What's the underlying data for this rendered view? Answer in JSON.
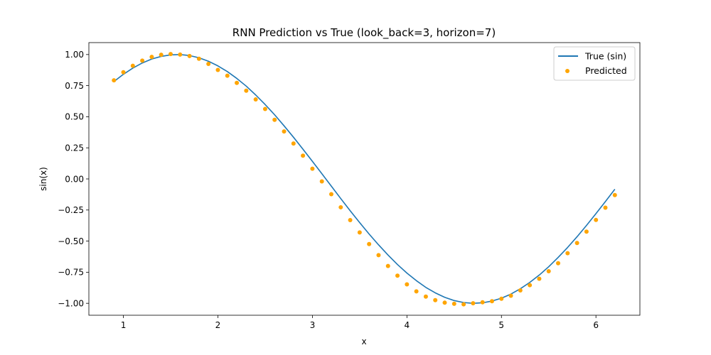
{
  "chart_data": {
    "type": "line",
    "title": "RNN Prediction vs True (look_back=3, horizon=7)",
    "xlabel": "x",
    "ylabel": "sin(x)",
    "xlim": [
      0.635,
      6.465
    ],
    "ylim": [
      -1.096,
      1.096
    ],
    "xticks": [
      1,
      2,
      3,
      4,
      5,
      6
    ],
    "yticks": [
      -1.0,
      -0.75,
      -0.5,
      -0.25,
      0.0,
      0.25,
      0.5,
      0.75,
      1.0
    ],
    "xtick_labels": [
      "1",
      "2",
      "3",
      "4",
      "5",
      "6"
    ],
    "ytick_labels": [
      "−1.00",
      "−0.75",
      "−0.50",
      "−0.25",
      "0.00",
      "0.25",
      "0.50",
      "0.75",
      "1.00"
    ],
    "grid": false,
    "legend_position": "top-right",
    "series": [
      {
        "name": "True (sin)",
        "kind": "line",
        "color": "#1f77b4",
        "x": [
          0.9,
          1.0,
          1.1,
          1.2,
          1.3,
          1.4,
          1.5,
          1.6,
          1.7,
          1.8,
          1.9,
          2.0,
          2.1,
          2.2,
          2.3,
          2.4,
          2.5,
          2.6,
          2.7,
          2.8,
          2.9,
          3.0,
          3.1,
          3.2,
          3.3,
          3.4,
          3.5,
          3.6,
          3.7,
          3.8,
          3.9,
          4.0,
          4.1,
          4.2,
          4.3,
          4.4,
          4.5,
          4.6,
          4.7,
          4.8,
          4.9,
          5.0,
          5.1,
          5.2,
          5.3,
          5.4,
          5.5,
          5.6,
          5.7,
          5.8,
          5.9,
          6.0,
          6.1,
          6.2
        ],
        "y": [
          0.783,
          0.841,
          0.891,
          0.932,
          0.964,
          0.985,
          0.997,
          1.0,
          0.992,
          0.974,
          0.946,
          0.909,
          0.863,
          0.808,
          0.746,
          0.675,
          0.598,
          0.516,
          0.427,
          0.335,
          0.239,
          0.141,
          0.042,
          -0.058,
          -0.158,
          -0.256,
          -0.351,
          -0.443,
          -0.53,
          -0.612,
          -0.688,
          -0.757,
          -0.818,
          -0.872,
          -0.916,
          -0.952,
          -0.978,
          -0.994,
          -1.0,
          -0.996,
          -0.982,
          -0.959,
          -0.926,
          -0.883,
          -0.832,
          -0.773,
          -0.706,
          -0.631,
          -0.551,
          -0.465,
          -0.374,
          -0.279,
          -0.182,
          -0.083
        ]
      },
      {
        "name": "Predicted",
        "kind": "scatter",
        "color": "#ffa500",
        "x": [
          0.9,
          1.0,
          1.1,
          1.2,
          1.3,
          1.4,
          1.5,
          1.6,
          1.7,
          1.8,
          1.9,
          2.0,
          2.1,
          2.2,
          2.3,
          2.4,
          2.5,
          2.6,
          2.7,
          2.8,
          2.9,
          3.0,
          3.1,
          3.2,
          3.3,
          3.4,
          3.5,
          3.6,
          3.7,
          3.8,
          3.9,
          4.0,
          4.1,
          4.2,
          4.3,
          4.4,
          4.5,
          4.6,
          4.7,
          4.8,
          4.9,
          5.0,
          5.1,
          5.2,
          5.3,
          5.4,
          5.5,
          5.6,
          5.7,
          5.8,
          5.9,
          6.0,
          6.1,
          6.2
        ],
        "y": [
          0.793,
          0.858,
          0.91,
          0.951,
          0.981,
          0.998,
          1.004,
          1.0,
          0.988,
          0.966,
          0.925,
          0.876,
          0.83,
          0.772,
          0.709,
          0.639,
          0.562,
          0.475,
          0.382,
          0.285,
          0.187,
          0.082,
          -0.02,
          -0.123,
          -0.228,
          -0.331,
          -0.43,
          -0.524,
          -0.613,
          -0.7,
          -0.778,
          -0.848,
          -0.904,
          -0.946,
          -0.975,
          -0.995,
          -1.004,
          -1.008,
          -1.0,
          -0.992,
          -0.983,
          -0.963,
          -0.939,
          -0.896,
          -0.854,
          -0.803,
          -0.742,
          -0.678,
          -0.597,
          -0.515,
          -0.424,
          -0.33,
          -0.231,
          -0.13
        ]
      }
    ]
  }
}
